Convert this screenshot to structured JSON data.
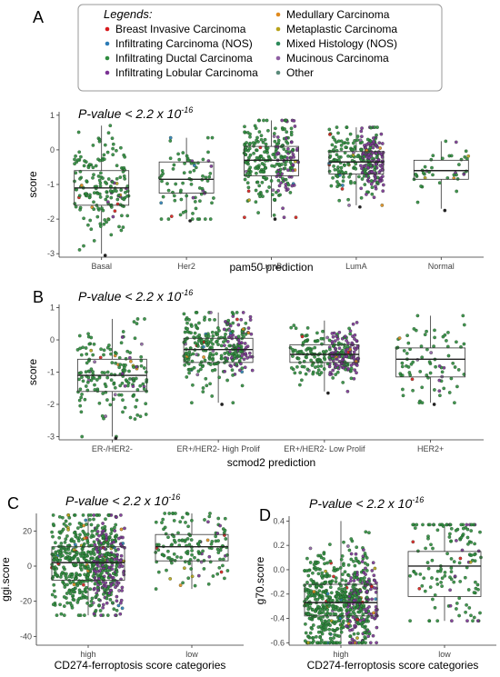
{
  "legend": {
    "title": "Legends:",
    "items": [
      {
        "label": "Breast Invasive Carcinoma",
        "color": "#d7191c"
      },
      {
        "label": "Infiltrating Carcinoma (NOS)",
        "color": "#2c7bb6"
      },
      {
        "label": "Infiltrating Ductal Carcinoma",
        "color": "#2e8b3e"
      },
      {
        "label": "Infiltrating Lobular Carcinoma",
        "color": "#7b3294"
      },
      {
        "label": "Medullary Carcinoma",
        "color": "#e08a1e"
      },
      {
        "label": "Metaplastic Carcinoma",
        "color": "#b8a21a"
      },
      {
        "label": "Mixed Histology (NOS)",
        "color": "#2d8a5a"
      },
      {
        "label": "Mucinous Carcinoma",
        "color": "#8e5ea2"
      },
      {
        "label": "Other",
        "color": "#5a8a7a"
      }
    ]
  },
  "panels": [
    {
      "letter": "A",
      "pvalue_text": "P-value < 2.2 x 10",
      "pvalue_exp": "-16"
    },
    {
      "letter": "B",
      "pvalue_text": "P-value < 2.2 x 10",
      "pvalue_exp": "-16"
    },
    {
      "letter": "C",
      "pvalue_text": "P-value < 2.2 x 10",
      "pvalue_exp": "-16"
    },
    {
      "letter": "D",
      "pvalue_text": "P-value < 2.2 x 10",
      "pvalue_exp": "-16"
    }
  ],
  "chart_data": [
    {
      "type": "boxplot",
      "panel": "A",
      "xlabel": "pam50 prediction",
      "ylabel": "score",
      "ylim": [
        -3.1,
        1.1
      ],
      "yticks": [
        1,
        0,
        -1,
        -2,
        -3
      ],
      "categories": [
        "Basal",
        "Her2",
        "LumB",
        "LumA",
        "Normal"
      ],
      "boxes": [
        {
          "min": -3.0,
          "q1": -1.6,
          "median": -1.1,
          "q3": -0.6,
          "max": 0.7,
          "n": 170,
          "lobular_frac": 0.04
        },
        {
          "min": -2.0,
          "q1": -1.25,
          "median": -0.85,
          "q3": -0.35,
          "max": 0.35,
          "n": 80,
          "lobular_frac": 0.05
        },
        {
          "min": -1.95,
          "q1": -0.75,
          "median": -0.3,
          "q3": 0.1,
          "max": 0.85,
          "n": 260,
          "lobular_frac": 0.2
        },
        {
          "min": -1.6,
          "q1": -0.7,
          "median": -0.35,
          "q3": -0.05,
          "max": 0.65,
          "n": 300,
          "lobular_frac": 0.38
        },
        {
          "min": -1.7,
          "q1": -0.85,
          "median": -0.6,
          "q3": -0.3,
          "max": 0.25,
          "n": 40,
          "lobular_frac": 0.1
        }
      ]
    },
    {
      "type": "boxplot",
      "panel": "B",
      "xlabel": "scmod2 prediction",
      "ylabel": "score",
      "ylim": [
        -3.1,
        1.1
      ],
      "yticks": [
        1,
        0,
        -1,
        -2,
        -3
      ],
      "categories": [
        "ER-/HER2-",
        "ER+/HER2- High Prolif",
        "ER+/HER2- Low Prolif",
        "HER2+"
      ],
      "boxes": [
        {
          "min": -3.0,
          "q1": -1.6,
          "median": -1.1,
          "q3": -0.6,
          "max": 0.65,
          "n": 170,
          "lobular_frac": 0.04
        },
        {
          "min": -1.95,
          "q1": -0.7,
          "median": -0.3,
          "q3": 0.05,
          "max": 0.85,
          "n": 300,
          "lobular_frac": 0.22
        },
        {
          "min": -1.6,
          "q1": -0.7,
          "median": -0.45,
          "q3": -0.15,
          "max": 0.6,
          "n": 260,
          "lobular_frac": 0.38
        },
        {
          "min": -1.95,
          "q1": -1.15,
          "median": -0.6,
          "q3": -0.25,
          "max": 0.75,
          "n": 80,
          "lobular_frac": 0.06
        }
      ]
    },
    {
      "type": "boxplot",
      "panel": "C",
      "xlabel": "CD274-ferroptosis score categories",
      "ylabel": "ggi.score",
      "ylim": [
        -45,
        30
      ],
      "yticks": [
        20,
        0,
        -20,
        -40
      ],
      "categories": [
        "high",
        "low"
      ],
      "boxes": [
        {
          "min": -28,
          "q1": -8,
          "median": 2,
          "q3": 11,
          "max": 29,
          "n": 650,
          "lobular_frac": 0.2
        },
        {
          "min": -13,
          "q1": 3,
          "median": 11,
          "q3": 18,
          "max": 30,
          "n": 140,
          "lobular_frac": 0.06
        }
      ]
    },
    {
      "type": "boxplot",
      "panel": "D",
      "xlabel": "CD274-ferroptosis score categories",
      "ylabel": "g70.score",
      "ylim": [
        -0.62,
        0.44
      ],
      "yticks": [
        0.4,
        0.2,
        0.0,
        -0.2,
        -0.4,
        -0.6
      ],
      "categories": [
        "high",
        "low"
      ],
      "boxes": [
        {
          "min": -0.6,
          "q1": -0.38,
          "median": -0.27,
          "q3": -0.12,
          "max": 0.4,
          "n": 650,
          "lobular_frac": 0.2
        },
        {
          "min": -0.42,
          "q1": -0.22,
          "median": 0.03,
          "q3": 0.15,
          "max": 0.37,
          "n": 140,
          "lobular_frac": 0.06
        }
      ]
    }
  ]
}
